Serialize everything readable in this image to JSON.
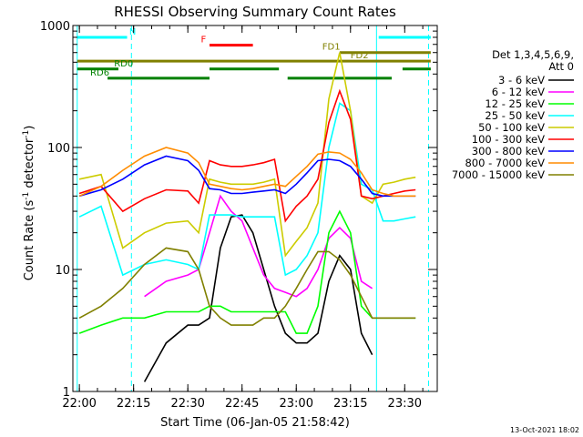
{
  "chart_data": {
    "type": "line",
    "title": "RHESSI Observing Summary Count Rates",
    "xlabel": "Start Time (06-Jan-05 21:58:42)",
    "ylabel": "Count Rate (s⁻¹ detector⁻¹)",
    "ylabel_main": "Count Rate (s",
    "ylabel_sup1": "-1",
    "ylabel_mid": " detector",
    "ylabel_sup2": "-1",
    "ylabel_end": ")",
    "yscale": "log",
    "xlim": [
      21.97,
      23.65
    ],
    "ylim": [
      1,
      1000
    ],
    "x_tick_values": [
      22.0,
      22.25,
      22.5,
      22.75,
      23.0,
      23.25,
      23.5
    ],
    "x_tick_labels": [
      "22:00",
      "22:15",
      "22:30",
      "22:45",
      "23:00",
      "23:15",
      "23:30"
    ],
    "y_tick_values": [
      1,
      10,
      100,
      1000
    ],
    "y_tick_labels": [
      "1",
      "10",
      "100",
      "1000"
    ],
    "legend_header": [
      "Det 1,3,4,5,6,9,",
      "Att 0"
    ],
    "series": [
      {
        "name": "3 - 6 keV",
        "color": "#000000",
        "x": [
          22.0,
          22.1,
          22.2,
          22.3,
          22.4,
          22.5,
          22.55,
          22.6,
          22.65,
          22.7,
          22.75,
          22.8,
          22.85,
          22.9,
          22.95,
          23.0,
          23.05,
          23.1,
          23.15,
          23.2,
          23.25,
          23.3,
          23.35,
          23.4,
          23.45,
          23.5,
          23.55
        ],
        "y": [
          null,
          null,
          null,
          1.2,
          2.5,
          3.5,
          3.5,
          4,
          15,
          27,
          28,
          20,
          10,
          5,
          3,
          2.5,
          2.5,
          3,
          8,
          13,
          10,
          3,
          2,
          null,
          null,
          null,
          null
        ]
      },
      {
        "name": "6 - 12 keV",
        "color": "#ff00ff",
        "x": [
          22.0,
          22.1,
          22.2,
          22.3,
          22.4,
          22.5,
          22.55,
          22.6,
          22.65,
          22.7,
          22.75,
          22.8,
          22.85,
          22.9,
          22.95,
          23.0,
          23.05,
          23.1,
          23.15,
          23.2,
          23.25,
          23.3,
          23.35,
          23.4,
          23.45,
          23.5,
          23.55
        ],
        "y": [
          null,
          null,
          null,
          6,
          8,
          9,
          10,
          20,
          40,
          30,
          25,
          15,
          9,
          7,
          6.5,
          6,
          7,
          10,
          18,
          22,
          18,
          8,
          7,
          null,
          null,
          null,
          null
        ]
      },
      {
        "name": "12 - 25 keV",
        "color": "#00ff00",
        "x": [
          22.0,
          22.1,
          22.2,
          22.3,
          22.4,
          22.5,
          22.55,
          22.6,
          22.65,
          22.7,
          22.75,
          22.8,
          22.85,
          22.9,
          22.95,
          23.0,
          23.05,
          23.1,
          23.15,
          23.2,
          23.25,
          23.3,
          23.35,
          23.4,
          23.45,
          23.5,
          23.55
        ],
        "y": [
          3,
          3.5,
          4,
          4,
          4.5,
          4.5,
          4.5,
          5,
          5,
          4.5,
          4.5,
          4.5,
          4.5,
          4.5,
          4.5,
          3,
          3,
          5,
          20,
          30,
          20,
          5,
          4,
          4,
          4,
          4,
          4
        ]
      },
      {
        "name": "25 - 50 keV",
        "color": "#00ffff",
        "x": [
          22.0,
          22.1,
          22.2,
          22.3,
          22.4,
          22.5,
          22.55,
          22.6,
          22.65,
          22.7,
          22.75,
          22.8,
          22.85,
          22.9,
          22.95,
          23.0,
          23.05,
          23.1,
          23.15,
          23.2,
          23.25,
          23.3,
          23.35,
          23.4,
          23.45,
          23.5,
          23.55
        ],
        "y": [
          27,
          33,
          9,
          11,
          12,
          11,
          10,
          28,
          28,
          28,
          27,
          27,
          27,
          27,
          9,
          10,
          13,
          20,
          100,
          230,
          200,
          50,
          45,
          25,
          25,
          26,
          27
        ]
      },
      {
        "name": "50 - 100 keV",
        "color": "#cccc00",
        "x": [
          22.0,
          22.1,
          22.2,
          22.3,
          22.4,
          22.5,
          22.55,
          22.6,
          22.65,
          22.7,
          22.75,
          22.8,
          22.85,
          22.9,
          22.95,
          23.0,
          23.05,
          23.1,
          23.15,
          23.2,
          23.25,
          23.3,
          23.35,
          23.4,
          23.45,
          23.5,
          23.55
        ],
        "y": [
          55,
          60,
          15,
          20,
          24,
          25,
          20,
          55,
          52,
          50,
          50,
          50,
          52,
          55,
          13,
          17,
          22,
          35,
          250,
          600,
          200,
          40,
          35,
          50,
          52,
          55,
          57
        ]
      },
      {
        "name": "100 - 300 keV",
        "color": "#ff0000",
        "x": [
          22.0,
          22.1,
          22.2,
          22.3,
          22.4,
          22.5,
          22.55,
          22.6,
          22.65,
          22.7,
          22.75,
          22.8,
          22.85,
          22.9,
          22.95,
          23.0,
          23.05,
          23.1,
          23.15,
          23.2,
          23.25,
          23.3,
          23.35,
          23.4,
          23.45,
          23.5,
          23.55
        ],
        "y": [
          42,
          48,
          30,
          38,
          45,
          44,
          35,
          78,
          72,
          70,
          70,
          72,
          75,
          80,
          25,
          33,
          40,
          55,
          160,
          290,
          170,
          40,
          38,
          40,
          42,
          44,
          45
        ]
      },
      {
        "name": "300 - 800 keV",
        "color": "#0000ff",
        "x": [
          22.0,
          22.1,
          22.2,
          22.3,
          22.4,
          22.5,
          22.55,
          22.6,
          22.65,
          22.7,
          22.75,
          22.8,
          22.85,
          22.9,
          22.95,
          23.0,
          23.05,
          23.1,
          23.15,
          23.2,
          23.25,
          23.3,
          23.35,
          23.4,
          23.45,
          23.5,
          23.55
        ],
        "y": [
          40,
          45,
          55,
          72,
          85,
          78,
          65,
          46,
          45,
          42,
          42,
          43,
          44,
          45,
          42,
          50,
          62,
          78,
          80,
          78,
          70,
          55,
          42,
          40,
          40,
          40,
          40
        ]
      },
      {
        "name": "800 - 7000 keV",
        "color": "#ff8c00",
        "x": [
          22.0,
          22.1,
          22.2,
          22.3,
          22.4,
          22.5,
          22.55,
          22.6,
          22.65,
          22.7,
          22.75,
          22.8,
          22.85,
          22.9,
          22.95,
          23.0,
          23.05,
          23.1,
          23.15,
          23.2,
          23.25,
          23.3,
          23.35,
          23.4,
          23.45,
          23.5,
          23.55
        ],
        "y": [
          40,
          48,
          65,
          85,
          100,
          90,
          75,
          50,
          48,
          46,
          45,
          46,
          48,
          50,
          48,
          58,
          70,
          88,
          92,
          90,
          80,
          62,
          45,
          42,
          40,
          40,
          40
        ]
      },
      {
        "name": "7000 - 15000 keV",
        "color": "#808000",
        "x": [
          22.0,
          22.1,
          22.2,
          22.3,
          22.4,
          22.5,
          22.55,
          22.6,
          22.65,
          22.7,
          22.75,
          22.8,
          22.85,
          22.9,
          22.95,
          23.0,
          23.05,
          23.1,
          23.15,
          23.2,
          23.25,
          23.3,
          23.35,
          23.4,
          23.45,
          23.5,
          23.55
        ],
        "y": [
          4,
          5,
          7,
          11,
          15,
          14,
          10,
          5,
          4,
          3.5,
          3.5,
          3.5,
          4,
          4,
          5,
          7,
          10,
          14,
          14,
          12,
          9,
          6,
          4,
          4,
          4,
          4,
          4
        ]
      }
    ],
    "flags": [
      {
        "label": "N",
        "color": "#00ffff",
        "level": 800,
        "segments": [
          [
            21.99,
            22.22
          ],
          [
            23.38,
            23.62
          ]
        ],
        "label_x": 22.23
      },
      {
        "label": "F",
        "color": "#ff0000",
        "level": 690,
        "segments": [
          [
            22.6,
            22.8
          ]
        ],
        "label_x": 22.56
      },
      {
        "label": "FD1",
        "color": "#808000",
        "level": 600,
        "segments": [
          [
            23.2,
            23.62
          ]
        ],
        "label_x": 23.12
      },
      {
        "label": "FD2",
        "color": "#808000",
        "level": 510,
        "segments": [
          [
            21.99,
            23.62
          ]
        ],
        "label_x": 23.25
      },
      {
        "label": "RD0",
        "color": "#008000",
        "level": 440,
        "segments": [
          [
            21.99,
            22.18
          ],
          [
            22.6,
            22.92
          ],
          [
            23.49,
            23.62
          ]
        ],
        "label_x": 22.16
      },
      {
        "label": "RD6",
        "color": "#008000",
        "level": 370,
        "segments": [
          [
            22.13,
            22.6
          ],
          [
            22.96,
            23.44
          ]
        ],
        "label_x": 22.05
      }
    ],
    "vlines": [
      {
        "x": 21.99,
        "color": "#00ffff",
        "style": "solid"
      },
      {
        "x": 22.24,
        "color": "#00ffff",
        "style": "dashed"
      },
      {
        "x": 23.37,
        "color": "#00ffff",
        "style": "solid"
      },
      {
        "x": 23.61,
        "color": "#00ffff",
        "style": "dashed"
      }
    ],
    "grid": false,
    "legend_position": "right"
  },
  "footer": {
    "timestamp": "13-Oct-2021 18:02"
  }
}
